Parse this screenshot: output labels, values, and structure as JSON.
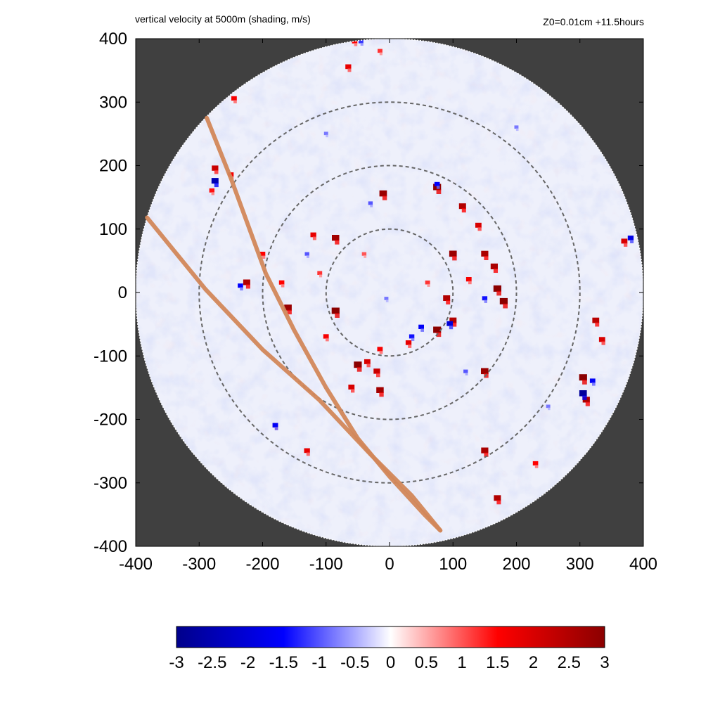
{
  "header": {
    "left_title": "vertical velocity at 5000m (shading, m/s)",
    "right_title": "Z0=0.01cm  +11.5hours"
  },
  "chart_data": {
    "type": "heatmap",
    "title": "vertical velocity at 5000m (shading, m/s)",
    "annotation": "Z0=0.01cm  +11.5hours",
    "xlim": [
      -400,
      400
    ],
    "ylim": [
      -400,
      400
    ],
    "x_ticks": [
      "-400",
      "-300",
      "-200",
      "-100",
      "0",
      "100",
      "200",
      "300",
      "400"
    ],
    "y_ticks": [
      "400",
      "300",
      "200",
      "100",
      "0",
      "-100",
      "-200",
      "-300",
      "-400"
    ],
    "x_tick_values": [
      -400,
      -300,
      -200,
      -100,
      0,
      100,
      200,
      300,
      400
    ],
    "y_tick_values": [
      400,
      300,
      200,
      100,
      0,
      -100,
      -200,
      -300,
      -400
    ],
    "domain_radius": 400,
    "outside_color": "#404040",
    "reference_circles_radius": [
      100,
      200,
      300
    ],
    "colorbar": {
      "range": [
        -3,
        3
      ],
      "tick_labels": [
        "-3",
        "-2.5",
        "-2",
        "-1.5",
        "-1",
        "-0.5",
        "0",
        "0.5",
        "1",
        "1.5",
        "2",
        "2.5",
        "3"
      ],
      "tick_values": [
        -3,
        -2.5,
        -2,
        -1.5,
        -1,
        -0.5,
        0,
        0.5,
        1,
        1.5,
        2,
        2.5,
        3
      ],
      "colors": [
        "#00008b",
        "#0000ff",
        "#ffffff",
        "#ff0000",
        "#8b0000"
      ]
    },
    "tracks": [
      {
        "color": "#d2875a",
        "points": [
          [
            -288,
            275
          ],
          [
            -250,
            180
          ],
          [
            -195,
            30
          ],
          [
            -150,
            -60
          ],
          [
            -100,
            -150
          ],
          [
            -50,
            -230
          ],
          [
            0,
            -290
          ],
          [
            55,
            -350
          ],
          [
            80,
            -375
          ]
        ]
      },
      {
        "color": "#d2875a",
        "points": [
          [
            -382,
            118
          ],
          [
            -290,
            5
          ],
          [
            -200,
            -90
          ],
          [
            -110,
            -170
          ],
          [
            -30,
            -255
          ],
          [
            35,
            -320
          ],
          [
            80,
            -375
          ]
        ]
      }
    ],
    "updraft_cells": [
      [
        -85,
        85,
        2.7
      ],
      [
        -120,
        90,
        1.8
      ],
      [
        -200,
        60,
        1.5
      ],
      [
        -170,
        15,
        1.5
      ],
      [
        -225,
        15,
        2.5
      ],
      [
        -160,
        -25,
        2.8
      ],
      [
        -85,
        -30,
        3.0
      ],
      [
        -100,
        -70,
        1.6
      ],
      [
        -10,
        155,
        2.8
      ],
      [
        75,
        165,
        3.0
      ],
      [
        115,
        135,
        2.5
      ],
      [
        140,
        105,
        2.0
      ],
      [
        100,
        60,
        2.8
      ],
      [
        150,
        60,
        2.6
      ],
      [
        165,
        40,
        2.6
      ],
      [
        170,
        5,
        3.0
      ],
      [
        180,
        -15,
        3.0
      ],
      [
        90,
        -10,
        2.5
      ],
      [
        100,
        -45,
        2.5
      ],
      [
        75,
        -60,
        3.0
      ],
      [
        30,
        -80,
        1.8
      ],
      [
        -15,
        -90,
        1.6
      ],
      [
        -35,
        -110,
        2.0
      ],
      [
        -50,
        -115,
        3.0
      ],
      [
        -20,
        -125,
        2.2
      ],
      [
        -60,
        -150,
        2.0
      ],
      [
        -15,
        -155,
        2.7
      ],
      [
        150,
        -125,
        2.8
      ],
      [
        305,
        -135,
        3.0
      ],
      [
        310,
        -170,
        2.6
      ],
      [
        325,
        -45,
        2.4
      ],
      [
        335,
        -75,
        2.0
      ],
      [
        150,
        -250,
        2.6
      ],
      [
        170,
        -325,
        2.5
      ],
      [
        -275,
        195,
        2.2
      ],
      [
        -250,
        185,
        1.6
      ],
      [
        -280,
        160,
        1.4
      ],
      [
        -55,
        395,
        1.5
      ],
      [
        -65,
        355,
        1.8
      ],
      [
        370,
        80,
        2.0
      ],
      [
        60,
        15,
        1.2
      ],
      [
        -40,
        60,
        1.0
      ],
      [
        -130,
        -250,
        1.8
      ],
      [
        -180,
        -210,
        1.5
      ],
      [
        125,
        20,
        1.6
      ],
      [
        -110,
        30,
        1.2
      ],
      [
        230,
        -270,
        1.5
      ],
      [
        -245,
        305,
        1.6
      ],
      [
        -15,
        380,
        1.2
      ]
    ],
    "downdraft_cells": [
      [
        -275,
        175,
        -2.5
      ],
      [
        305,
        -160,
        -2.8
      ],
      [
        95,
        -50,
        -2.0
      ],
      [
        50,
        -55,
        -1.6
      ],
      [
        75,
        170,
        -1.5
      ],
      [
        -5,
        -10,
        -0.8
      ],
      [
        -130,
        60,
        -1.0
      ],
      [
        150,
        -10,
        -1.4
      ],
      [
        -180,
        -210,
        -1.6
      ],
      [
        -45,
        395,
        -1.2
      ],
      [
        380,
        85,
        -1.8
      ],
      [
        -235,
        10,
        -1.5
      ],
      [
        35,
        -70,
        -1.4
      ],
      [
        320,
        -140,
        -1.6
      ],
      [
        -30,
        140,
        -1.0
      ],
      [
        120,
        -125,
        -1.0
      ],
      [
        200,
        260,
        -0.8
      ],
      [
        -100,
        250,
        -0.8
      ],
      [
        250,
        -180,
        -0.8
      ]
    ]
  }
}
